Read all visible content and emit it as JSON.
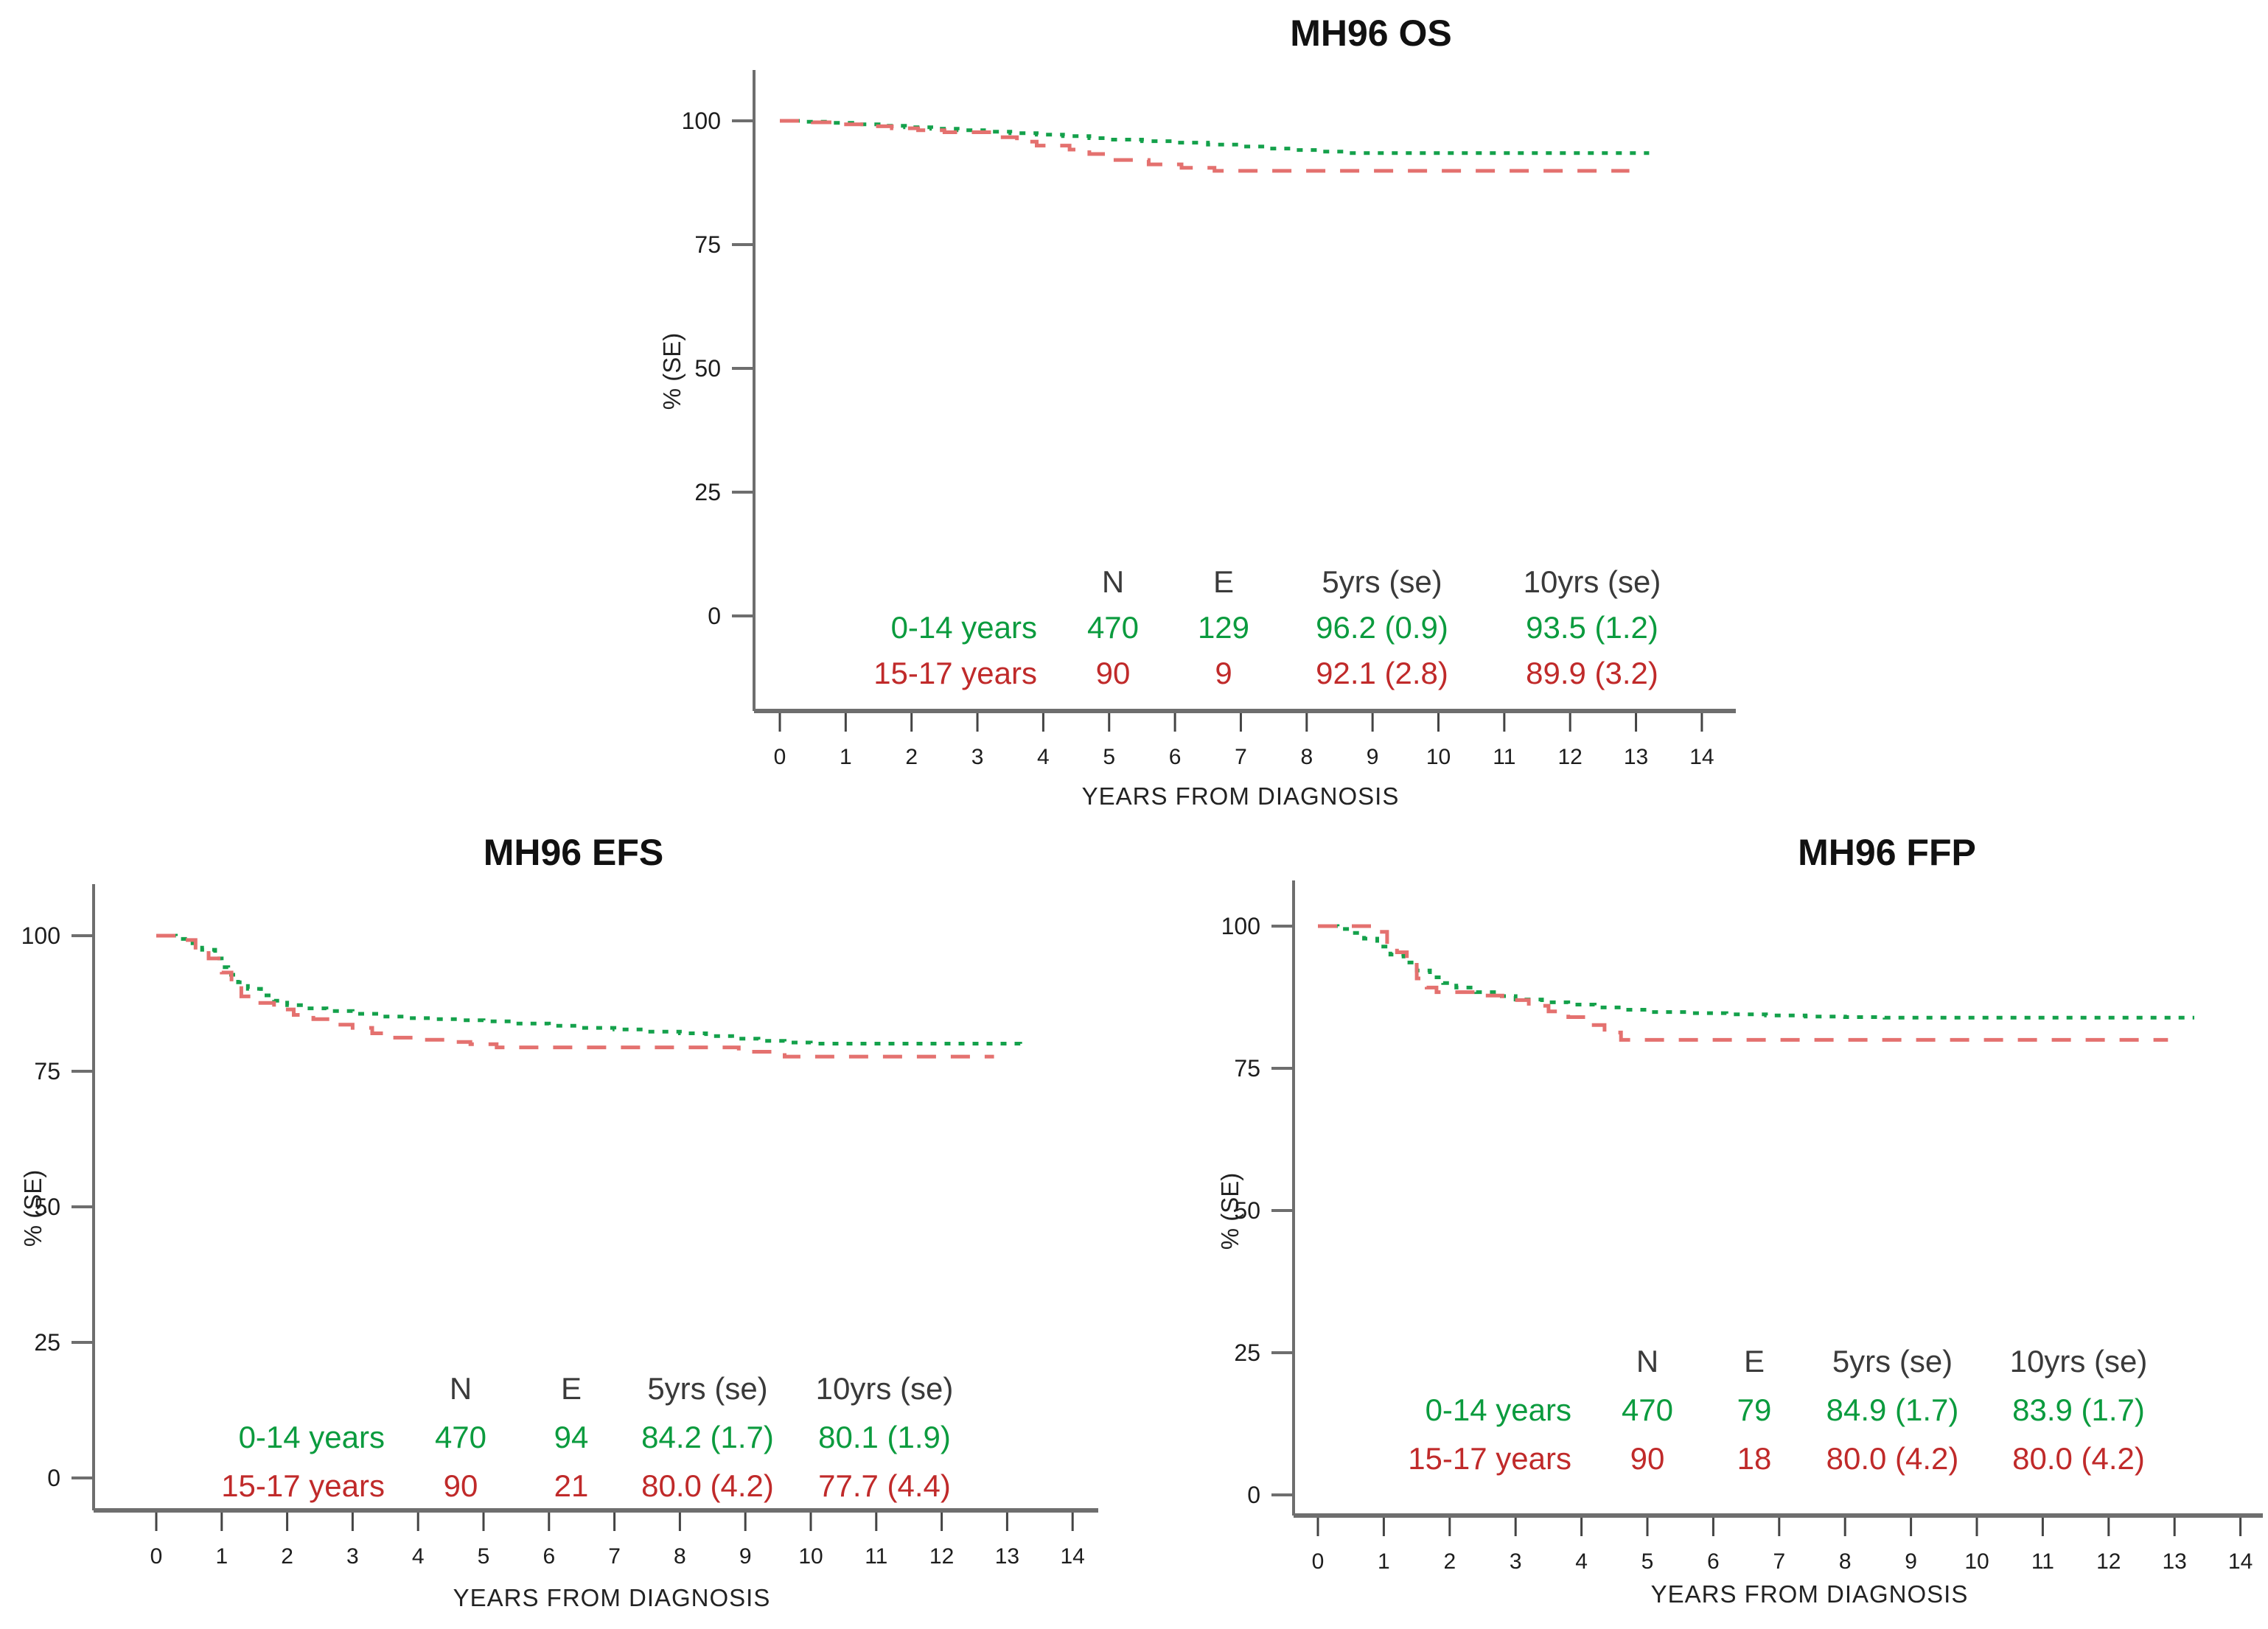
{
  "colors": {
    "green_text": "#0b9b3e",
    "red_text": "#c02a2a",
    "green_curve": "#14a14b",
    "red_curve": "#e4716f",
    "axis": "#6e6e6e",
    "tick_label": "#1d1d1d",
    "header_text": "#3a3a3a"
  },
  "chart_data": [
    {
      "type": "line",
      "subtype": "kaplan-meier-step",
      "title": "MH96 OS",
      "xlabel": "YEARS FROM DIAGNOSIS",
      "ylabel": "% (SE)",
      "xlim": [
        0,
        14.5
      ],
      "ylim": [
        0,
        100
      ],
      "xticks": [
        0,
        1,
        2,
        3,
        4,
        5,
        6,
        7,
        8,
        9,
        10,
        11,
        12,
        13,
        14
      ],
      "yticks": [
        0,
        25,
        50,
        75,
        100
      ],
      "grid": false,
      "legend_table": {
        "headers": [
          "N",
          "E",
          "5yrs (se)",
          "10yrs (se)"
        ],
        "rows": [
          {
            "label": "0-14 years",
            "color": "green",
            "values": [
              "470",
              "129",
              "96.2 (0.9)",
              "93.5 (1.2)"
            ]
          },
          {
            "label": "15-17 years",
            "color": "red",
            "values": [
              "90",
              "9",
              "92.1 (2.8)",
              "89.9 (3.2)"
            ]
          }
        ]
      },
      "series": [
        {
          "name": "0-14 years",
          "style": "dotted",
          "color_key": "green",
          "points": [
            [
              0,
              100
            ],
            [
              0.4,
              99.8
            ],
            [
              0.8,
              99.6
            ],
            [
              1.1,
              99.3
            ],
            [
              1.5,
              99.0
            ],
            [
              1.9,
              98.7
            ],
            [
              2.3,
              98.4
            ],
            [
              2.7,
              98.1
            ],
            [
              3.1,
              97.8
            ],
            [
              3.5,
              97.5
            ],
            [
              3.9,
              97.2
            ],
            [
              4.3,
              96.9
            ],
            [
              4.7,
              96.5
            ],
            [
              5.0,
              96.2
            ],
            [
              5.5,
              95.9
            ],
            [
              6.0,
              95.6
            ],
            [
              6.5,
              95.2
            ],
            [
              7.0,
              94.8
            ],
            [
              7.4,
              94.4
            ],
            [
              7.8,
              94.1
            ],
            [
              8.2,
              93.8
            ],
            [
              8.6,
              93.5
            ],
            [
              13.2,
              93.5
            ]
          ]
        },
        {
          "name": "15-17 years",
          "style": "dashed",
          "color_key": "red",
          "points": [
            [
              0,
              100
            ],
            [
              0.5,
              99.7
            ],
            [
              0.9,
              99.3
            ],
            [
              1.3,
              98.9
            ],
            [
              1.7,
              98.5
            ],
            [
              2.1,
              98.1
            ],
            [
              2.5,
              97.7
            ],
            [
              3.3,
              96.7
            ],
            [
              3.6,
              95.8
            ],
            [
              3.9,
              95.0
            ],
            [
              4.4,
              94.2
            ],
            [
              4.7,
              93.3
            ],
            [
              5.0,
              92.1
            ],
            [
              5.6,
              91.2
            ],
            [
              6.1,
              90.5
            ],
            [
              6.6,
              89.9
            ],
            [
              12.9,
              89.9
            ]
          ]
        }
      ]
    },
    {
      "type": "line",
      "subtype": "kaplan-meier-step",
      "title": "MH96 EFS",
      "xlabel": "YEARS FROM DIAGNOSIS",
      "ylabel": "% (SE)",
      "xlim": [
        0,
        14.5
      ],
      "ylim": [
        0,
        100
      ],
      "xticks": [
        0,
        1,
        2,
        3,
        4,
        5,
        6,
        7,
        8,
        9,
        10,
        11,
        12,
        13,
        14
      ],
      "yticks": [
        0,
        25,
        50,
        75,
        100
      ],
      "grid": false,
      "legend_table": {
        "headers": [
          "N",
          "E",
          "5yrs (se)",
          "10yrs (se)"
        ],
        "rows": [
          {
            "label": "0-14 years",
            "color": "green",
            "values": [
              "470",
              "94",
              "84.2 (1.7)",
              "80.1 (1.9)"
            ]
          },
          {
            "label": "15-17 years",
            "color": "red",
            "values": [
              "90",
              "21",
              "80.0 (4.2)",
              "77.7 (4.4)"
            ]
          }
        ]
      },
      "series": [
        {
          "name": "0-14 years",
          "style": "dotted",
          "color_key": "green",
          "points": [
            [
              0,
              100
            ],
            [
              0.3,
              99.4
            ],
            [
              0.5,
              98.6
            ],
            [
              0.7,
              97.4
            ],
            [
              0.9,
              95.8
            ],
            [
              1.0,
              94.2
            ],
            [
              1.1,
              92.8
            ],
            [
              1.25,
              91.4
            ],
            [
              1.4,
              90.2
            ],
            [
              1.6,
              89.0
            ],
            [
              1.8,
              88.0
            ],
            [
              2.0,
              87.2
            ],
            [
              2.3,
              86.6
            ],
            [
              2.6,
              86.1
            ],
            [
              3.0,
              85.6
            ],
            [
              3.4,
              85.1
            ],
            [
              3.8,
              84.8
            ],
            [
              4.2,
              84.6
            ],
            [
              4.6,
              84.4
            ],
            [
              5.0,
              84.2
            ],
            [
              5.5,
              83.8
            ],
            [
              6.0,
              83.4
            ],
            [
              6.5,
              83.0
            ],
            [
              7.0,
              82.7
            ],
            [
              7.5,
              82.3
            ],
            [
              8.0,
              82.0
            ],
            [
              8.4,
              81.5
            ],
            [
              8.8,
              81.0
            ],
            [
              9.2,
              80.6
            ],
            [
              9.6,
              80.3
            ],
            [
              10.0,
              80.1
            ],
            [
              13.2,
              79.9
            ]
          ]
        },
        {
          "name": "15-17 years",
          "style": "dashed",
          "color_key": "red",
          "points": [
            [
              0,
              100
            ],
            [
              0.4,
              99.2
            ],
            [
              0.6,
              97.8
            ],
            [
              0.8,
              95.8
            ],
            [
              1.0,
              93.2
            ],
            [
              1.15,
              90.8
            ],
            [
              1.3,
              88.8
            ],
            [
              1.5,
              87.6
            ],
            [
              1.8,
              86.4
            ],
            [
              2.1,
              85.4
            ],
            [
              2.4,
              84.6
            ],
            [
              2.7,
              83.6
            ],
            [
              3.0,
              83.0
            ],
            [
              3.3,
              82.0
            ],
            [
              3.6,
              81.2
            ],
            [
              4.0,
              80.8
            ],
            [
              4.4,
              80.4
            ],
            [
              4.8,
              80.0
            ],
            [
              5.2,
              79.4
            ],
            [
              8.9,
              78.6
            ],
            [
              9.6,
              77.7
            ],
            [
              12.8,
              77.7
            ]
          ]
        }
      ]
    },
    {
      "type": "line",
      "subtype": "kaplan-meier-step",
      "title": "MH96 FFP",
      "xlabel": "YEARS FROM DIAGNOSIS",
      "ylabel": "% (SE)",
      "xlim": [
        0,
        14.5
      ],
      "ylim": [
        0,
        100
      ],
      "xticks": [
        0,
        1,
        2,
        3,
        4,
        5,
        6,
        7,
        8,
        9,
        10,
        11,
        12,
        13,
        14
      ],
      "yticks": [
        0,
        25,
        50,
        75,
        100
      ],
      "grid": false,
      "legend_table": {
        "headers": [
          "N",
          "E",
          "5yrs (se)",
          "10yrs (se)"
        ],
        "rows": [
          {
            "label": "0-14 years",
            "color": "green",
            "values": [
              "470",
              "79",
              "84.9 (1.7)",
              "83.9 (1.7)"
            ]
          },
          {
            "label": "15-17 years",
            "color": "red",
            "values": [
              "90",
              "18",
              "80.0 (4.2)",
              "80.0 (4.2)"
            ]
          }
        ]
      },
      "series": [
        {
          "name": "0-14 years",
          "style": "dotted",
          "color_key": "green",
          "points": [
            [
              0,
              100
            ],
            [
              0.3,
              99.5
            ],
            [
              0.5,
              98.8
            ],
            [
              0.7,
              97.8
            ],
            [
              0.9,
              96.4
            ],
            [
              1.1,
              95.0
            ],
            [
              1.3,
              93.6
            ],
            [
              1.5,
              92.2
            ],
            [
              1.7,
              91.0
            ],
            [
              1.9,
              90.0
            ],
            [
              2.1,
              89.2
            ],
            [
              2.4,
              88.4
            ],
            [
              2.7,
              87.7
            ],
            [
              3.0,
              87.1
            ],
            [
              3.4,
              86.6
            ],
            [
              3.8,
              86.2
            ],
            [
              4.2,
              85.7
            ],
            [
              4.6,
              85.3
            ],
            [
              5.0,
              84.9
            ],
            [
              5.6,
              84.7
            ],
            [
              6.2,
              84.5
            ],
            [
              6.8,
              84.3
            ],
            [
              7.4,
              84.1
            ],
            [
              8.0,
              84.0
            ],
            [
              8.6,
              83.9
            ],
            [
              13.3,
              83.9
            ]
          ]
        },
        {
          "name": "15-17 years",
          "style": "dashed",
          "color_key": "red",
          "points": [
            [
              0,
              100
            ],
            [
              0.9,
              99.0
            ],
            [
              1.05,
              97.2
            ],
            [
              1.2,
              95.4
            ],
            [
              1.35,
              93.2
            ],
            [
              1.5,
              90.8
            ],
            [
              1.65,
              89.2
            ],
            [
              1.8,
              88.4
            ],
            [
              2.4,
              87.8
            ],
            [
              2.8,
              87.0
            ],
            [
              3.2,
              86.0
            ],
            [
              3.5,
              85.0
            ],
            [
              3.8,
              84.0
            ],
            [
              4.1,
              82.6
            ],
            [
              4.35,
              81.3
            ],
            [
              4.6,
              80.0
            ],
            [
              12.9,
              80.0
            ]
          ]
        }
      ]
    }
  ]
}
